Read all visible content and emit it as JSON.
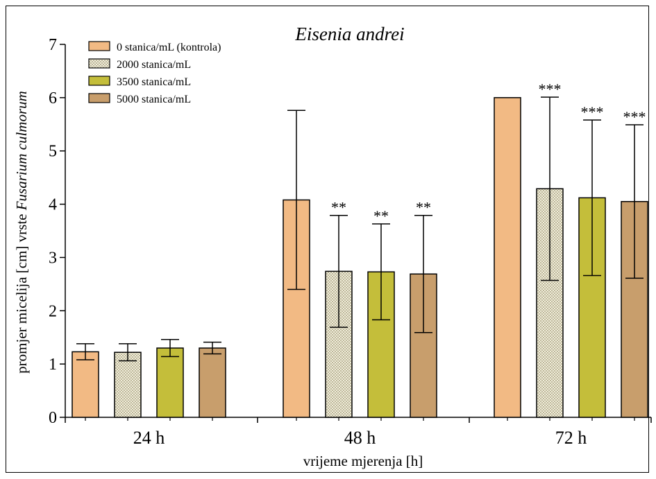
{
  "chart_data": {
    "type": "bar",
    "title": "Eisenia andrei",
    "xlabel": "vrijeme mjerenja [h]",
    "ylabel_plain": "promjer micelija [cm] vrste ",
    "ylabel_italic": "Fusarium culmorum",
    "ylim": [
      0,
      7
    ],
    "yticks": [
      0,
      1,
      2,
      3,
      4,
      5,
      6,
      7
    ],
    "categories": [
      "24 h",
      "48 h",
      "72 h"
    ],
    "legend_position": "top-left",
    "grid": false,
    "series": [
      {
        "name": "0 stanica/mL (kontrola)",
        "color": "#F2BA84",
        "pattern": "solid",
        "values": [
          1.23,
          4.08,
          6.0
        ],
        "errors": [
          0.15,
          1.68,
          0.0
        ],
        "significance": [
          "",
          "",
          ""
        ]
      },
      {
        "name": "2000 stanica/mL",
        "color": "#E6E2C8",
        "pattern": "checker",
        "values": [
          1.22,
          2.74,
          4.29
        ],
        "errors": [
          0.16,
          1.05,
          1.72
        ],
        "significance": [
          "",
          "**",
          "***"
        ]
      },
      {
        "name": "3500 stanica/mL",
        "color": "#C4BE3A",
        "pattern": "solid",
        "values": [
          1.3,
          2.73,
          4.12
        ],
        "errors": [
          0.16,
          0.9,
          1.46
        ],
        "significance": [
          "",
          "**",
          "***"
        ]
      },
      {
        "name": "5000 stanica/mL",
        "color": "#C89E6C",
        "pattern": "solid",
        "values": [
          1.3,
          2.69,
          4.05
        ],
        "errors": [
          0.11,
          1.1,
          1.44
        ],
        "significance": [
          "",
          "**",
          "***"
        ]
      }
    ]
  }
}
